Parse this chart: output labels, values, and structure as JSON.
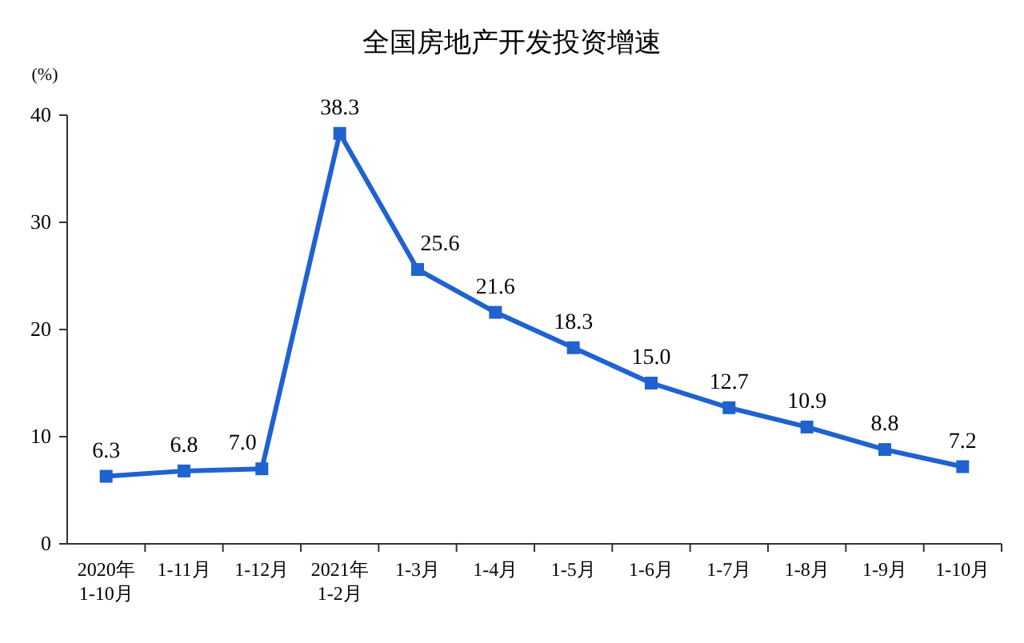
{
  "chart_data": {
    "type": "line",
    "title": "全国房地产开发投资增速",
    "ylabel": "(%)",
    "categories": [
      "2020年\n1-10月",
      "1-11月",
      "1-12月",
      "2021年\n1-2月",
      "1-3月",
      "1-4月",
      "1-5月",
      "1-6月",
      "1-7月",
      "1-8月",
      "1-9月",
      "1-10月"
    ],
    "series": [
      {
        "color": "#1f62d0",
        "values": [
          6.3,
          6.8,
          7.0,
          38.3,
          25.6,
          21.6,
          18.3,
          15.0,
          12.7,
          10.9,
          8.8,
          7.2
        ],
        "value_labels": [
          "6.3",
          "6.8",
          "7.0",
          "38.3",
          "25.6",
          "21.6",
          "18.3",
          "15.0",
          "12.7",
          "10.9",
          "8.8",
          "7.2"
        ]
      }
    ],
    "ylim": [
      0,
      40
    ],
    "yticks": [
      0,
      10,
      20,
      30,
      40
    ],
    "grid": false,
    "marker": "square",
    "line_style": "solid"
  }
}
